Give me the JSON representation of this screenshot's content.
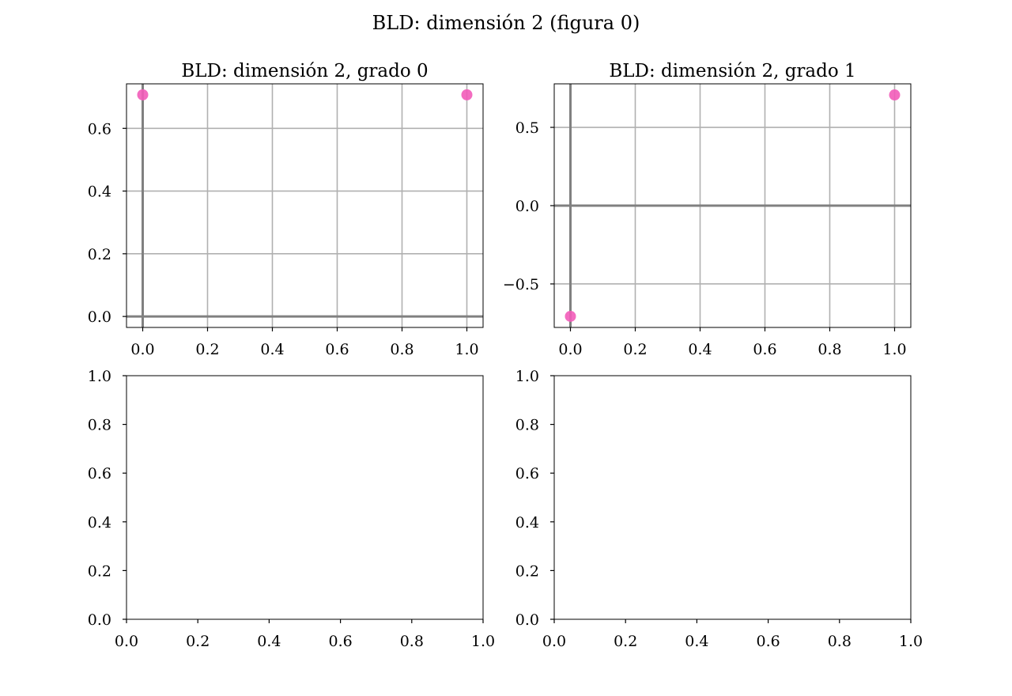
{
  "figure": {
    "title": "BLD: dimensión 2 (figura 0)"
  },
  "colors": {
    "points": "#f25cb9",
    "grid": "#b0b0b0",
    "axis_lines": "#808080",
    "frame": "#000000"
  },
  "chart_data": [
    {
      "type": "scatter",
      "title": "BLD: dimensión 2, grado 0",
      "xlabel": "",
      "ylabel": "",
      "xlim": [
        -0.05,
        1.05
      ],
      "ylim": [
        -0.035,
        0.742
      ],
      "xticks": [
        0.0,
        0.2,
        0.4,
        0.6,
        0.8,
        1.0
      ],
      "xtick_labels": [
        "0.0",
        "0.2",
        "0.4",
        "0.6",
        "0.8",
        "1.0"
      ],
      "yticks": [
        0.0,
        0.2,
        0.4,
        0.6
      ],
      "ytick_labels": [
        "0.0",
        "0.2",
        "0.4",
        "0.6"
      ],
      "grid": true,
      "reference_lines": {
        "x": 0,
        "y": 0
      },
      "points": [
        {
          "x": 0.0,
          "y": 0.707
        },
        {
          "x": 1.0,
          "y": 0.707
        }
      ]
    },
    {
      "type": "scatter",
      "title": "BLD: dimensión 2, grado 1",
      "xlabel": "",
      "ylabel": "",
      "xlim": [
        -0.05,
        1.05
      ],
      "ylim": [
        -0.778,
        0.778
      ],
      "xticks": [
        0.0,
        0.2,
        0.4,
        0.6,
        0.8,
        1.0
      ],
      "xtick_labels": [
        "0.0",
        "0.2",
        "0.4",
        "0.6",
        "0.8",
        "1.0"
      ],
      "yticks": [
        -0.5,
        0.0,
        0.5
      ],
      "ytick_labels": [
        "−0.5",
        "0.0",
        "0.5"
      ],
      "grid": true,
      "reference_lines": {
        "x": 0,
        "y": 0
      },
      "points": [
        {
          "x": 0.0,
          "y": -0.707
        },
        {
          "x": 1.0,
          "y": 0.707
        }
      ]
    },
    {
      "type": "scatter",
      "title": "",
      "xlabel": "",
      "ylabel": "",
      "xlim": [
        0,
        1
      ],
      "ylim": [
        0,
        1
      ],
      "xticks": [
        0.0,
        0.2,
        0.4,
        0.6,
        0.8,
        1.0
      ],
      "xtick_labels": [
        "0.0",
        "0.2",
        "0.4",
        "0.6",
        "0.8",
        "1.0"
      ],
      "yticks": [
        0.0,
        0.2,
        0.4,
        0.6,
        0.8,
        1.0
      ],
      "ytick_labels": [
        "0.0",
        "0.2",
        "0.4",
        "0.6",
        "0.8",
        "1.0"
      ],
      "grid": false,
      "points": []
    },
    {
      "type": "scatter",
      "title": "",
      "xlabel": "",
      "ylabel": "",
      "xlim": [
        0,
        1
      ],
      "ylim": [
        0,
        1
      ],
      "xticks": [
        0.0,
        0.2,
        0.4,
        0.6,
        0.8,
        1.0
      ],
      "xtick_labels": [
        "0.0",
        "0.2",
        "0.4",
        "0.6",
        "0.8",
        "1.0"
      ],
      "yticks": [
        0.0,
        0.2,
        0.4,
        0.6,
        0.8,
        1.0
      ],
      "ytick_labels": [
        "0.0",
        "0.2",
        "0.4",
        "0.6",
        "0.8",
        "1.0"
      ],
      "grid": false,
      "points": []
    }
  ]
}
